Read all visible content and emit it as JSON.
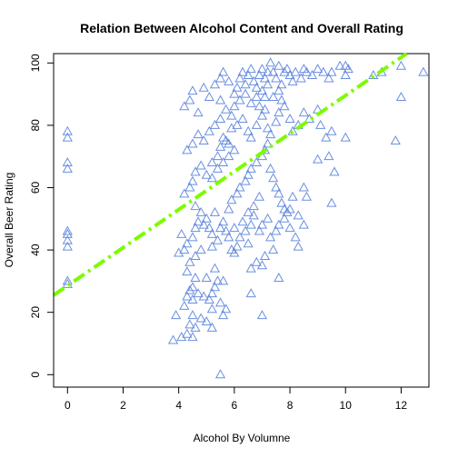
{
  "chart_data": {
    "type": "scatter",
    "title": "Relation Between Alcohol Content and Overall Rating",
    "xlabel": "Alcohol By Volumne",
    "ylabel": "Overall Beer Rating",
    "xlim": [
      -0.5,
      13.0
    ],
    "ylim": [
      -4,
      103
    ],
    "xticks": [
      0,
      2,
      4,
      6,
      8,
      10,
      12
    ],
    "yticks": [
      0,
      20,
      40,
      60,
      80,
      100
    ],
    "grid": false,
    "marker": "triangle",
    "marker_color": "#6a8fe0",
    "trend_line": {
      "x": [
        -0.5,
        12.2
      ],
      "y": [
        25.5,
        103
      ],
      "color": "#7cfc00",
      "style": "dashdot"
    },
    "points": [
      [
        0,
        30
      ],
      [
        0,
        29
      ],
      [
        0,
        41
      ],
      [
        0,
        43
      ],
      [
        0,
        45
      ],
      [
        0,
        46
      ],
      [
        0,
        66
      ],
      [
        0,
        68
      ],
      [
        0,
        76
      ],
      [
        0,
        78
      ],
      [
        3.8,
        11
      ],
      [
        4.1,
        12
      ],
      [
        4.3,
        13
      ],
      [
        4.5,
        12
      ],
      [
        4.4,
        16
      ],
      [
        4.6,
        15
      ],
      [
        5.2,
        15
      ],
      [
        5.5,
        0
      ],
      [
        3.9,
        19
      ],
      [
        4.2,
        22
      ],
      [
        4.3,
        25
      ],
      [
        4.4,
        27
      ],
      [
        4.5,
        28
      ],
      [
        4.6,
        31
      ],
      [
        4.3,
        33
      ],
      [
        4.5,
        19
      ],
      [
        4.8,
        18
      ],
      [
        5.0,
        17
      ],
      [
        5.1,
        24
      ],
      [
        5.2,
        21
      ],
      [
        5.3,
        28
      ],
      [
        5.4,
        30
      ],
      [
        5.5,
        23
      ],
      [
        5.6,
        19
      ],
      [
        5.7,
        21
      ],
      [
        5.2,
        26
      ],
      [
        5.6,
        30
      ],
      [
        4.9,
        25
      ],
      [
        4.7,
        26
      ],
      [
        4.5,
        24
      ],
      [
        5.0,
        31
      ],
      [
        5.3,
        34
      ],
      [
        4.4,
        36
      ],
      [
        4.6,
        38
      ],
      [
        4.8,
        40
      ],
      [
        4.3,
        42
      ],
      [
        4.1,
        45
      ],
      [
        4.0,
        39
      ],
      [
        4.2,
        40
      ],
      [
        4.5,
        44
      ],
      [
        4.6,
        47
      ],
      [
        4.7,
        49
      ],
      [
        4.9,
        48
      ],
      [
        5.0,
        50
      ],
      [
        5.1,
        47
      ],
      [
        5.2,
        45
      ],
      [
        4.8,
        52
      ],
      [
        4.6,
        54
      ],
      [
        5.2,
        41
      ],
      [
        5.4,
        43
      ],
      [
        5.5,
        47
      ],
      [
        5.6,
        49
      ],
      [
        5.3,
        52
      ],
      [
        5.7,
        46
      ],
      [
        5.8,
        44
      ],
      [
        5.9,
        40
      ],
      [
        6.0,
        39
      ],
      [
        6.1,
        41
      ],
      [
        6.2,
        44
      ],
      [
        6.0,
        47
      ],
      [
        6.3,
        49
      ],
      [
        5.8,
        53
      ],
      [
        5.9,
        56
      ],
      [
        6.1,
        58
      ],
      [
        6.4,
        46
      ],
      [
        6.5,
        42
      ],
      [
        6.6,
        48
      ],
      [
        6.7,
        51
      ],
      [
        4.2,
        58
      ],
      [
        4.4,
        60
      ],
      [
        4.5,
        62
      ],
      [
        4.6,
        65
      ],
      [
        4.8,
        67
      ],
      [
        5.0,
        64
      ],
      [
        5.2,
        63
      ],
      [
        5.4,
        66
      ],
      [
        5.6,
        68
      ],
      [
        5.8,
        70
      ],
      [
        4.3,
        72
      ],
      [
        4.5,
        74
      ],
      [
        4.7,
        77
      ],
      [
        4.9,
        75
      ],
      [
        5.1,
        78
      ],
      [
        5.3,
        80
      ],
      [
        5.5,
        82
      ],
      [
        5.6,
        76
      ],
      [
        5.8,
        74
      ],
      [
        6.0,
        72
      ],
      [
        4.2,
        86
      ],
      [
        4.4,
        88
      ],
      [
        4.5,
        91
      ],
      [
        4.7,
        84
      ],
      [
        4.9,
        92
      ],
      [
        5.1,
        89
      ],
      [
        5.3,
        93
      ],
      [
        5.5,
        95
      ],
      [
        5.6,
        97
      ],
      [
        5.8,
        94
      ],
      [
        6.0,
        90
      ],
      [
        6.1,
        92
      ],
      [
        6.2,
        95
      ],
      [
        6.3,
        97
      ],
      [
        6.4,
        93
      ],
      [
        6.5,
        96
      ],
      [
        6.6,
        98
      ],
      [
        6.7,
        94
      ],
      [
        6.8,
        92
      ],
      [
        6.9,
        96
      ],
      [
        7.0,
        98
      ],
      [
        7.1,
        95
      ],
      [
        7.2,
        97
      ],
      [
        7.3,
        100
      ],
      [
        7.4,
        97
      ],
      [
        7.5,
        95
      ],
      [
        7.6,
        99
      ],
      [
        7.8,
        97
      ],
      [
        7.9,
        98
      ],
      [
        8.0,
        96
      ],
      [
        8.1,
        94
      ],
      [
        8.2,
        97
      ],
      [
        8.4,
        95
      ],
      [
        8.5,
        98
      ],
      [
        8.6,
        97
      ],
      [
        8.8,
        96
      ],
      [
        9.0,
        98
      ],
      [
        9.2,
        97
      ],
      [
        9.4,
        95
      ],
      [
        9.5,
        97
      ],
      [
        9.8,
        99
      ],
      [
        10.0,
        99
      ],
      [
        10.0,
        96
      ],
      [
        10.1,
        98
      ],
      [
        11.0,
        96
      ],
      [
        11.3,
        97
      ],
      [
        12.0,
        99
      ],
      [
        12.8,
        97
      ],
      [
        12.0,
        89
      ],
      [
        6.1,
        80
      ],
      [
        6.3,
        82
      ],
      [
        6.5,
        78
      ],
      [
        6.6,
        76
      ],
      [
        6.8,
        80
      ],
      [
        7.0,
        83
      ],
      [
        7.1,
        85
      ],
      [
        7.2,
        79
      ],
      [
        7.3,
        77
      ],
      [
        7.5,
        81
      ],
      [
        7.6,
        84
      ],
      [
        7.7,
        88
      ],
      [
        7.8,
        86
      ],
      [
        8.0,
        82
      ],
      [
        8.1,
        78
      ],
      [
        8.3,
        80
      ],
      [
        8.5,
        84
      ],
      [
        8.7,
        82
      ],
      [
        9.0,
        85
      ],
      [
        9.1,
        80
      ],
      [
        9.3,
        76
      ],
      [
        9.5,
        78
      ],
      [
        10.0,
        76
      ],
      [
        11.8,
        75
      ],
      [
        9.0,
        69
      ],
      [
        9.4,
        70
      ],
      [
        9.6,
        65
      ],
      [
        9.5,
        55
      ],
      [
        8.5,
        60
      ],
      [
        8.6,
        57
      ],
      [
        6.2,
        60
      ],
      [
        6.4,
        62
      ],
      [
        6.5,
        64
      ],
      [
        6.6,
        66
      ],
      [
        6.8,
        68
      ],
      [
        7.0,
        70
      ],
      [
        7.1,
        72
      ],
      [
        7.2,
        74
      ],
      [
        7.3,
        66
      ],
      [
        7.4,
        63
      ],
      [
        7.5,
        60
      ],
      [
        7.6,
        58
      ],
      [
        7.7,
        55
      ],
      [
        7.8,
        53
      ],
      [
        6.9,
        57
      ],
      [
        6.7,
        54
      ],
      [
        6.5,
        52
      ],
      [
        7.2,
        50
      ],
      [
        7.0,
        48
      ],
      [
        6.9,
        46
      ],
      [
        7.3,
        44
      ],
      [
        7.5,
        46
      ],
      [
        7.6,
        48
      ],
      [
        7.8,
        50
      ],
      [
        7.9,
        52
      ],
      [
        8.0,
        47
      ],
      [
        8.2,
        44
      ],
      [
        8.3,
        41
      ],
      [
        7.4,
        40
      ],
      [
        7.1,
        38
      ],
      [
        6.8,
        36
      ],
      [
        6.6,
        34
      ],
      [
        7.0,
        35
      ],
      [
        7.6,
        31
      ],
      [
        6.6,
        26
      ],
      [
        7.0,
        19
      ],
      [
        8.0,
        53
      ],
      [
        8.3,
        51
      ],
      [
        8.5,
        48
      ],
      [
        8.1,
        57
      ],
      [
        5.5,
        88
      ],
      [
        5.7,
        85
      ],
      [
        5.9,
        83
      ],
      [
        6.0,
        86
      ],
      [
        6.2,
        88
      ],
      [
        6.4,
        90
      ],
      [
        6.6,
        87
      ],
      [
        6.8,
        89
      ],
      [
        7.0,
        91
      ],
      [
        7.2,
        93
      ],
      [
        7.4,
        89
      ],
      [
        7.6,
        91
      ],
      [
        7.7,
        93
      ],
      [
        7.1,
        89
      ],
      [
        6.9,
        86
      ],
      [
        5.9,
        79
      ],
      [
        5.7,
        75
      ],
      [
        5.5,
        73
      ],
      [
        5.4,
        70
      ],
      [
        5.2,
        68
      ]
    ]
  }
}
